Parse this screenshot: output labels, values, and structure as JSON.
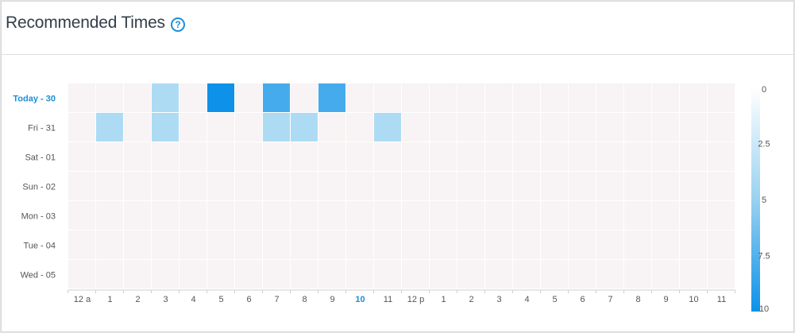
{
  "header": {
    "title": "Recommended Times",
    "help_icon": "question-circle-icon"
  },
  "colors": {
    "empty_cell": "#f8f3f4",
    "scale_min": "#ffffff",
    "scale_mid": "#99d2f1",
    "scale_max": "#0e91e9",
    "highlight": "#1a8fd6"
  },
  "chart_data": {
    "type": "heatmap",
    "rows": [
      "Today - 30",
      "Fri - 31",
      "Sat - 01",
      "Sun - 02",
      "Mon - 03",
      "Tue - 04",
      "Wed - 05"
    ],
    "highlighted_row": "Today - 30",
    "columns": [
      "12 a",
      "1",
      "2",
      "3",
      "4",
      "5",
      "6",
      "7",
      "8",
      "9",
      "10",
      "11",
      "12 p",
      "1",
      "2",
      "3",
      "4",
      "5",
      "6",
      "7",
      "8",
      "9",
      "10",
      "11"
    ],
    "highlighted_column_index": 10,
    "values": [
      [
        0,
        0,
        0,
        4,
        0,
        10,
        0,
        8,
        0,
        8,
        0,
        0,
        0,
        0,
        0,
        0,
        0,
        0,
        0,
        0,
        0,
        0,
        0,
        0
      ],
      [
        0,
        4,
        0,
        4,
        0,
        0,
        0,
        4,
        4,
        0,
        0,
        4,
        0,
        0,
        0,
        0,
        0,
        0,
        0,
        0,
        0,
        0,
        0,
        0
      ],
      [
        0,
        0,
        0,
        0,
        0,
        0,
        0,
        0,
        0,
        0,
        0,
        0,
        0,
        0,
        0,
        0,
        0,
        0,
        0,
        0,
        0,
        0,
        0,
        0
      ],
      [
        0,
        0,
        0,
        0,
        0,
        0,
        0,
        0,
        0,
        0,
        0,
        0,
        0,
        0,
        0,
        0,
        0,
        0,
        0,
        0,
        0,
        0,
        0,
        0
      ],
      [
        0,
        0,
        0,
        0,
        0,
        0,
        0,
        0,
        0,
        0,
        0,
        0,
        0,
        0,
        0,
        0,
        0,
        0,
        0,
        0,
        0,
        0,
        0,
        0
      ],
      [
        0,
        0,
        0,
        0,
        0,
        0,
        0,
        0,
        0,
        0,
        0,
        0,
        0,
        0,
        0,
        0,
        0,
        0,
        0,
        0,
        0,
        0,
        0,
        0
      ],
      [
        0,
        0,
        0,
        0,
        0,
        0,
        0,
        0,
        0,
        0,
        0,
        0,
        0,
        0,
        0,
        0,
        0,
        0,
        0,
        0,
        0,
        0,
        0,
        0
      ]
    ],
    "color_scale": {
      "min": 0,
      "max": 10,
      "ticks": [
        "0",
        "2.5",
        "5",
        "7.5",
        "10"
      ]
    },
    "legend_position": "right"
  }
}
